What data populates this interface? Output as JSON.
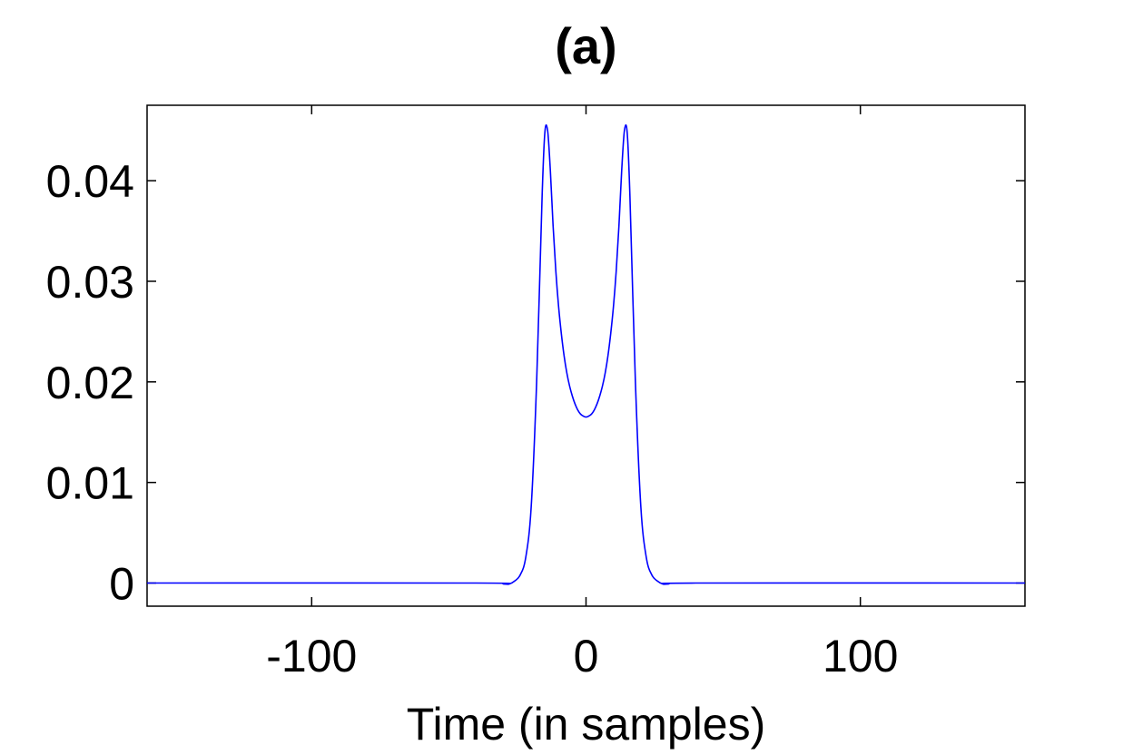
{
  "chart_data": {
    "type": "line",
    "title": "(a)",
    "xlabel": "Time (in samples)",
    "ylabel": "",
    "xlim": [
      -160,
      160
    ],
    "ylim": [
      -0.0023,
      0.0475
    ],
    "xticks": [
      -100,
      0,
      100
    ],
    "xtick_labels": [
      "-100",
      "0",
      "100"
    ],
    "yticks": [
      0,
      0.01,
      0.02,
      0.03,
      0.04
    ],
    "ytick_labels": [
      "0",
      "0.01",
      "0.02",
      "0.03",
      "0.04"
    ],
    "grid": false,
    "series": [
      {
        "color": "#0000ff",
        "x": [
          -160,
          -40,
          -30,
          -28,
          -26,
          -24,
          -22,
          -20,
          -18,
          -16,
          -15,
          -14,
          -13,
          -12,
          -11,
          -10,
          -9,
          -8,
          -7,
          -6,
          -5,
          -4,
          -3,
          -2,
          -1,
          0,
          1,
          2,
          3,
          4,
          5,
          6,
          7,
          8,
          9,
          10,
          11,
          12,
          13,
          14,
          15,
          16,
          18,
          20,
          22,
          24,
          26,
          28,
          30,
          40,
          160
        ],
        "y": [
          0,
          0,
          -0.0001,
          -0.0001,
          0.0002,
          0.0008,
          0.0025,
          0.0075,
          0.02,
          0.0385,
          0.0448,
          0.045,
          0.041,
          0.0355,
          0.031,
          0.0275,
          0.0248,
          0.0226,
          0.0209,
          0.0196,
          0.0186,
          0.0178,
          0.0172,
          0.0168,
          0.0166,
          0.0165,
          0.0166,
          0.0168,
          0.0172,
          0.0178,
          0.0186,
          0.0196,
          0.0209,
          0.0226,
          0.0248,
          0.0275,
          0.031,
          0.0355,
          0.041,
          0.045,
          0.0448,
          0.0385,
          0.02,
          0.0075,
          0.0025,
          0.0008,
          0.0002,
          -0.0001,
          -0.0001,
          0,
          0
        ]
      }
    ]
  }
}
